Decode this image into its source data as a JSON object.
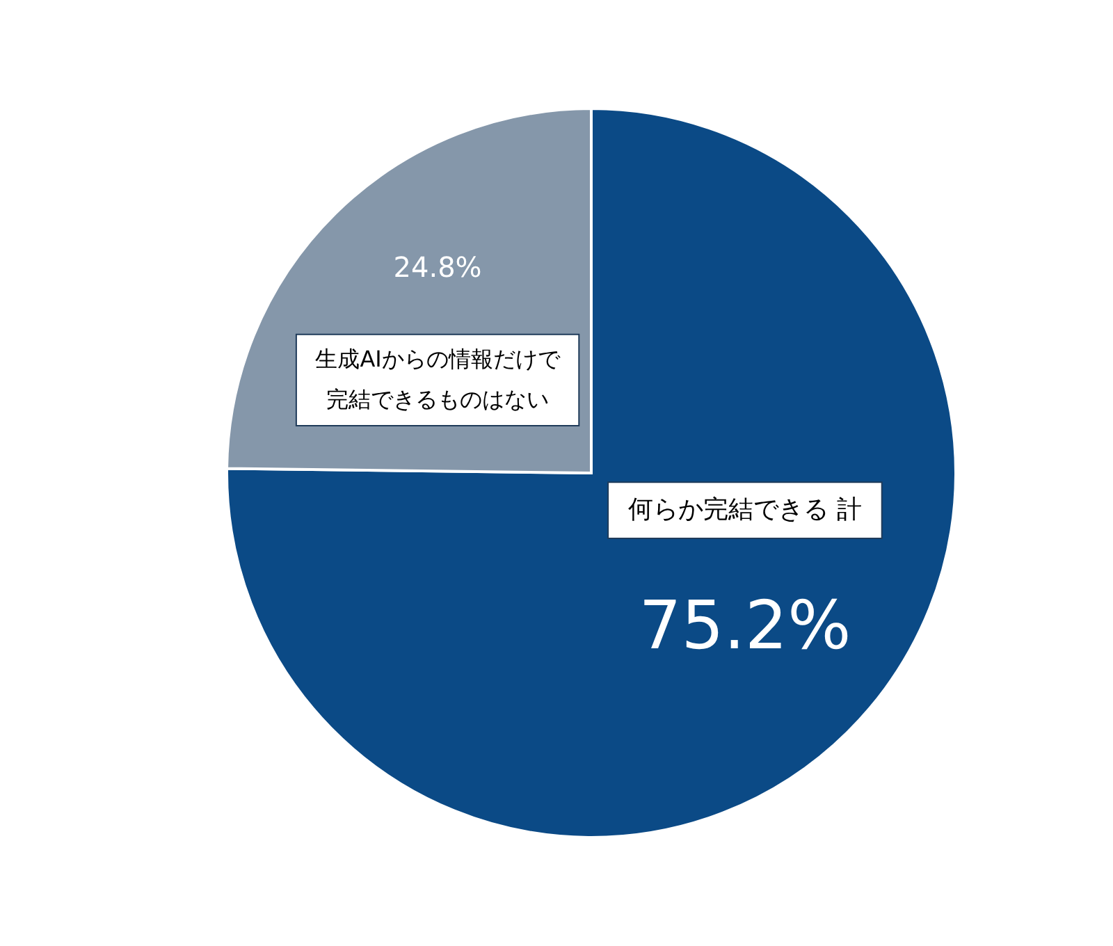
{
  "chart_data": {
    "type": "pie",
    "categories": [
      "何らか完結できる 計",
      "生成AIからの情報だけで完結できるものはない"
    ],
    "values": [
      75.2,
      24.8
    ],
    "colors": [
      "#0b4a86",
      "#8597aa"
    ],
    "value_labels": [
      "75.2%",
      "24.8%"
    ]
  }
}
